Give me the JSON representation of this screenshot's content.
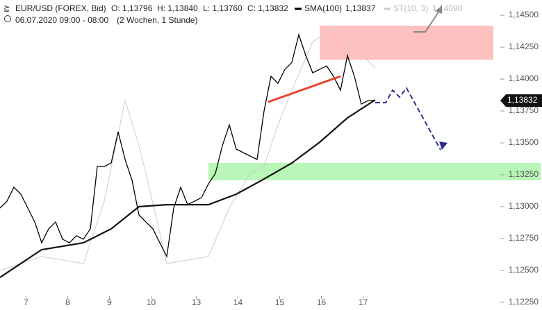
{
  "header": {
    "symbol": "EUR/USD (FOREX, Bid)",
    "open": "O: 1,13796",
    "high": "H: 1,13840",
    "low": "L: 1,13760",
    "close": "C: 1,13832",
    "sma_name": "SMA(100)",
    "sma_value": "1,13837",
    "st_name": "ST(10, 3)",
    "st_value": "1,14090",
    "period": "06.07.2020 09:00 - 08:00",
    "range": "(2 Wochen, 1 Stunde)"
  },
  "chart_data": {
    "type": "line",
    "last_price_label": "1,13832",
    "xlim": [
      0,
      288
    ],
    "xticks": [
      {
        "value": 15,
        "label": "7"
      },
      {
        "value": 39,
        "label": "8"
      },
      {
        "value": 63,
        "label": "9"
      },
      {
        "value": 87,
        "label": "10"
      },
      {
        "value": 113,
        "label": "13"
      },
      {
        "value": 137,
        "label": "14"
      },
      {
        "value": 161,
        "label": "15"
      },
      {
        "value": 185,
        "label": "16"
      },
      {
        "value": 209,
        "label": "17"
      }
    ],
    "ylim": [
      1.1219,
      1.1462
    ],
    "yticks": [
      {
        "value": 1.1225,
        "label": "1,12250"
      },
      {
        "value": 1.125,
        "label": "1,12500"
      },
      {
        "value": 1.1275,
        "label": "1,12750"
      },
      {
        "value": 1.13,
        "label": "1,13000"
      },
      {
        "value": 1.1325,
        "label": "1,13250"
      },
      {
        "value": 1.135,
        "label": "1,13500"
      },
      {
        "value": 1.1375,
        "label": "1,13750"
      },
      {
        "value": 1.14,
        "label": "1,14000"
      },
      {
        "value": 1.1425,
        "label": "1,14250"
      },
      {
        "value": 1.145,
        "label": "1,14500"
      }
    ],
    "series": [
      {
        "name": "EUR/USD",
        "color": "#000000",
        "line_width": 1.3,
        "x": [
          0,
          4,
          8,
          12,
          16,
          20,
          24,
          28,
          32,
          36,
          40,
          44,
          48,
          52,
          56,
          60,
          64,
          68,
          72,
          76,
          80,
          84,
          88,
          92,
          96,
          100,
          104,
          108,
          112,
          116,
          120,
          124,
          128,
          132,
          136,
          140,
          144,
          148,
          152,
          156,
          160,
          164,
          168,
          172,
          176,
          180,
          184,
          188,
          192,
          196,
          200,
          204,
          208,
          212,
          216
        ],
        "values": [
          1.12989,
          1.13043,
          1.13152,
          1.13098,
          1.12989,
          1.1288,
          1.12717,
          1.12826,
          1.1288,
          1.12745,
          1.12717,
          1.12772,
          1.12745,
          1.12826,
          1.13315,
          1.13315,
          1.13342,
          1.13587,
          1.1337,
          1.13207,
          1.12935,
          1.1288,
          1.12826,
          1.12717,
          1.12609,
          1.12989,
          1.13152,
          1.13016,
          1.13043,
          1.13071,
          1.13179,
          1.13261,
          1.13478,
          1.13641,
          1.13451,
          1.13424,
          1.13397,
          1.1337,
          1.1375,
          1.14022,
          1.13967,
          1.14076,
          1.1413,
          1.14348,
          1.14185,
          1.14049,
          1.14076,
          1.14103,
          1.14022,
          1.13913,
          1.14185,
          1.14022,
          1.13804,
          1.13832,
          1.13832
        ]
      },
      {
        "name": "SMA(100)",
        "color": "#111111",
        "line_width": 2.2,
        "x": [
          0,
          24,
          48,
          64,
          80,
          96,
          120,
          136,
          152,
          168,
          184,
          200,
          216
        ],
        "values": [
          1.12446,
          1.12663,
          1.12717,
          1.12826,
          1.13,
          1.13016,
          1.13016,
          1.13098,
          1.13217,
          1.13342,
          1.13505,
          1.13696,
          1.13837
        ]
      },
      {
        "name": "ST(10, 3)",
        "color": "#cccccc",
        "line_width": 1,
        "x": [
          0,
          24,
          48,
          60,
          72,
          80,
          84,
          96,
          120,
          132,
          144,
          152,
          160,
          168,
          180,
          192,
          204,
          216
        ],
        "values": [
          1.125,
          1.12609,
          1.12554,
          1.13043,
          1.13832,
          1.13478,
          1.13261,
          1.12554,
          1.12609,
          1.12989,
          1.13261,
          1.13315,
          1.13641,
          1.13913,
          1.14293,
          1.14402,
          1.14239,
          1.1409
        ]
      }
    ]
  }
}
